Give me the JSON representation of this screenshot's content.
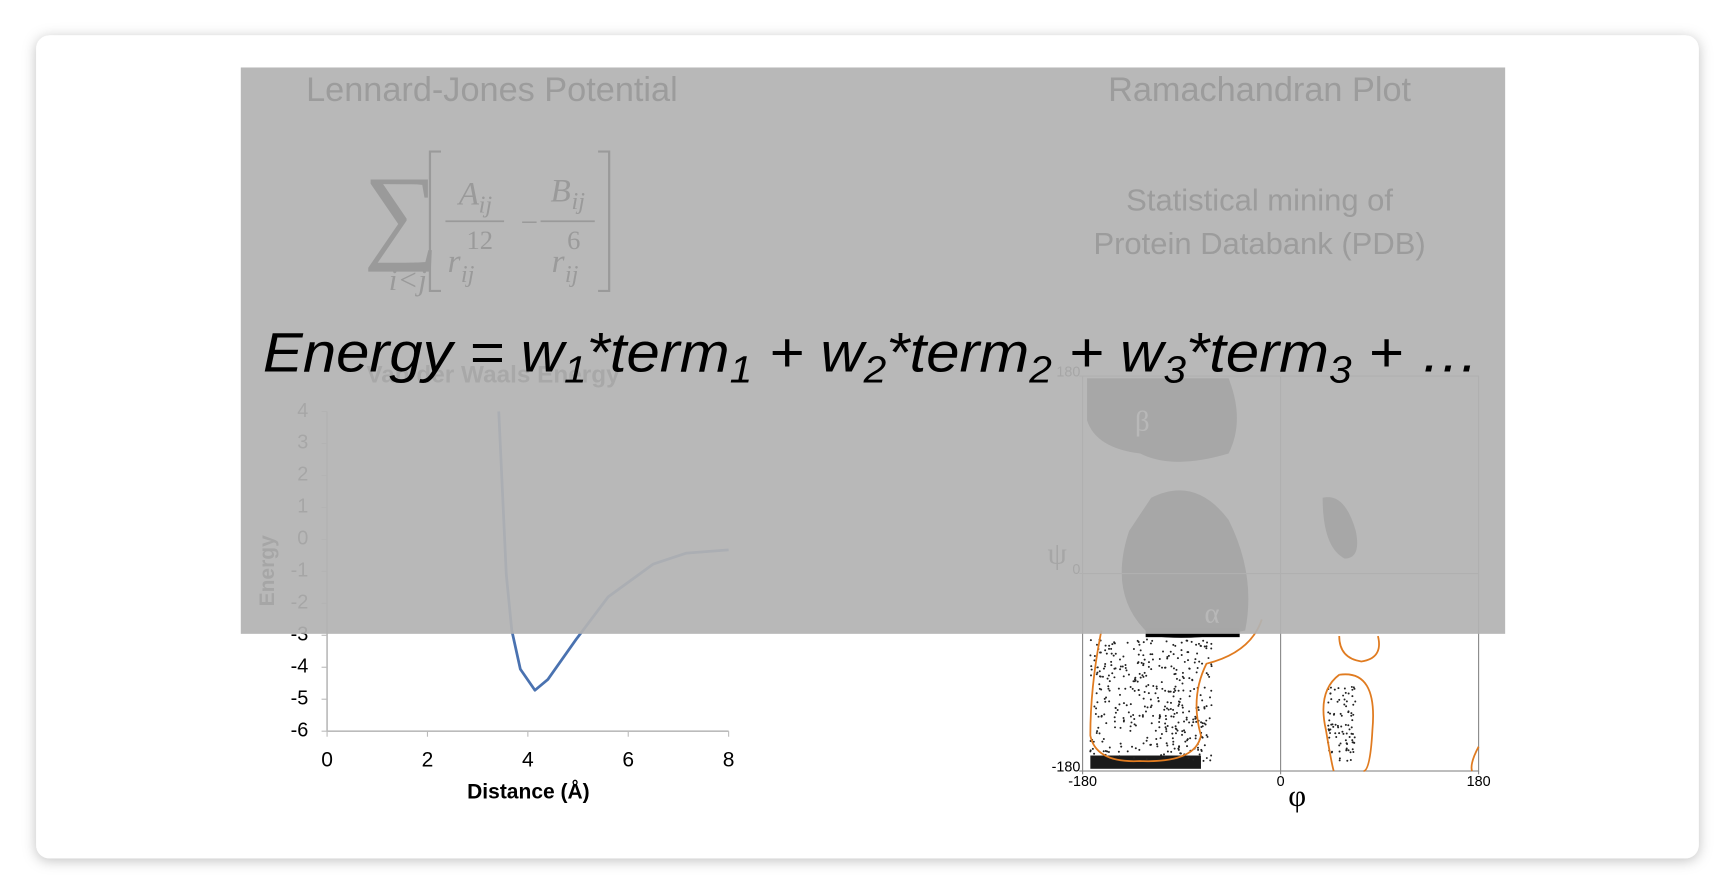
{
  "slide": {
    "left_title": "Lennard-Jones Potential",
    "right_title": "Ramachandran Plot",
    "right_text": [
      "Statistical mining of",
      "Protein Databank (PDB)"
    ],
    "formula": {
      "sum": "∑",
      "sum_index": "i<j",
      "a": "A",
      "a_sub": "ij",
      "r1": "r",
      "r1_sub": "ij",
      "r1_pow": "12",
      "minus": "−",
      "b": "B",
      "b_sub": "ij",
      "r2": "r",
      "r2_sub": "ij",
      "r2_pow": "6"
    },
    "equation": [
      {
        "text": "Energy = w"
      },
      {
        "text": "1",
        "sub": true
      },
      {
        "text": "*term"
      },
      {
        "text": "1",
        "sub": true
      },
      {
        "text": " + w"
      },
      {
        "text": "2",
        "sub": true
      },
      {
        "text": "*term"
      },
      {
        "text": "2",
        "sub": true
      },
      {
        "text": " + w"
      },
      {
        "text": "3",
        "sub": true
      },
      {
        "text": "*term"
      },
      {
        "text": "3",
        "sub": true
      },
      {
        "text": " + …"
      }
    ]
  },
  "chart_data": [
    {
      "type": "line",
      "title": "Van der Waals Energy",
      "x_label": "Distance (Å)",
      "y_label": "Energy",
      "x": [
        3.42,
        3.57,
        3.68,
        3.85,
        4.14,
        4.4,
        4.96,
        5.6,
        6.5,
        7.16,
        8
      ],
      "values": [
        4,
        -1.1,
        -2.85,
        -4.06,
        -4.72,
        -4.38,
        -3.13,
        -1.8,
        -0.77,
        -0.43,
        -0.33
      ],
      "color": "#4a72b0",
      "xlim": [
        0,
        8
      ],
      "ylim": [
        -6,
        4
      ],
      "xticks": [
        0,
        2,
        4,
        6,
        8
      ],
      "yticks": [
        -6,
        -5,
        -4,
        -3,
        -2,
        -1,
        0,
        1,
        2,
        3,
        4
      ]
    },
    {
      "type": "density",
      "x_label": "φ",
      "y_label": "ψ",
      "region_labels": [
        "α",
        "β"
      ],
      "xlim": [
        -180,
        180
      ],
      "ylim": [
        -180,
        180
      ],
      "xticks": [
        -180,
        0,
        180
      ],
      "yticks": [
        -180,
        0,
        180
      ]
    }
  ]
}
